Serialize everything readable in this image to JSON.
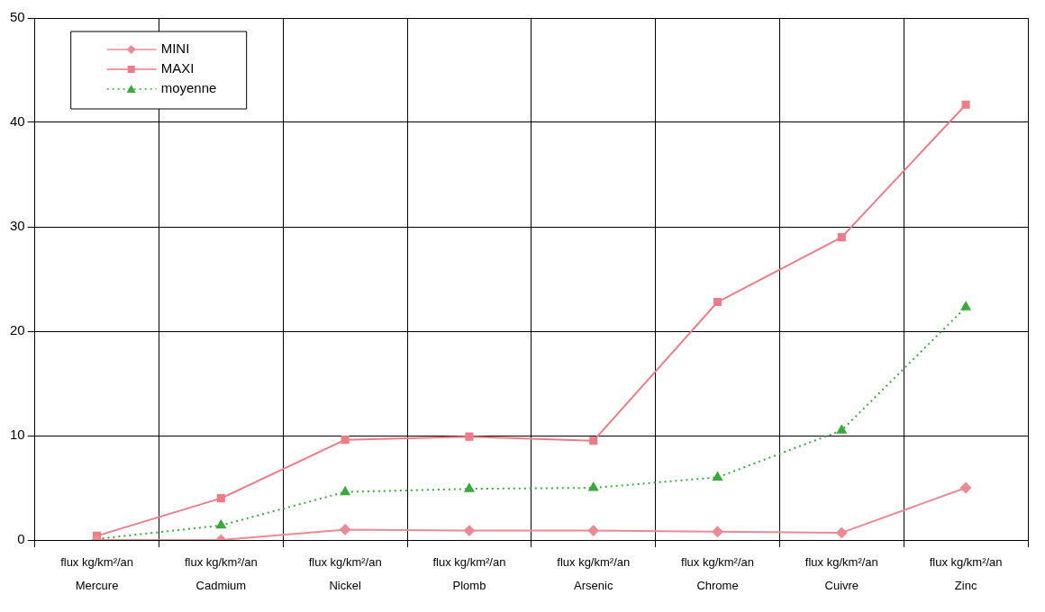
{
  "chart_data": {
    "type": "line",
    "categories": [
      "flux kg/km²/an\nMercure",
      "flux kg/km²/an\nCadmium",
      "flux kg/km²/an\nNickel",
      "flux kg/km²/an\nPlomb",
      "flux kg/km²/an\nArsenic",
      "flux kg/km²/an\nChrome",
      "flux kg/km²/an\nCuivre",
      "flux kg/km²/an\nZinc"
    ],
    "series": [
      {
        "name": "MINI",
        "color": "#ec8a94",
        "marker": "diamond",
        "line_style": "solid",
        "values": [
          0,
          0,
          1.0,
          0.9,
          0.9,
          0.8,
          0.7,
          5.0
        ]
      },
      {
        "name": "MAXI",
        "color": "#ec7c88",
        "marker": "square",
        "line_style": "solid",
        "values": [
          0.4,
          4.0,
          9.6,
          9.9,
          9.5,
          22.8,
          29.0,
          41.7
        ]
      },
      {
        "name": "moyenne",
        "color": "#3aaa3a",
        "marker": "triangle",
        "line_style": "dotted",
        "values": [
          0.1,
          1.4,
          4.6,
          4.9,
          5.0,
          6.0,
          10.5,
          22.3
        ]
      }
    ],
    "ylim": [
      0,
      50
    ],
    "yticks": [
      0,
      10,
      20,
      30,
      40,
      50
    ],
    "grid": true,
    "legend": "top left"
  }
}
